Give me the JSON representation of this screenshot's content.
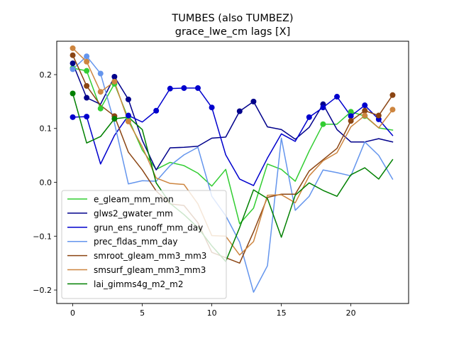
{
  "chart_data": {
    "type": "line",
    "title": "TUMBES (also TUMBEZ)",
    "subtitle": "grace_lwe_cm lags [X]",
    "xlabel": "",
    "ylabel": "",
    "xlim": [
      -1.15,
      24.15
    ],
    "ylim": [
      -0.225,
      0.262
    ],
    "xticks": [
      0,
      5,
      10,
      15,
      20
    ],
    "xtick_labels": [
      "0",
      "5",
      "10",
      "15",
      "20"
    ],
    "yticks": [
      -0.2,
      -0.1,
      0.0,
      0.1,
      0.2
    ],
    "ytick_labels": [
      "−0.2",
      "−0.1",
      "0.0",
      "0.1",
      "0.2"
    ],
    "grid": false,
    "legend_position": "lower-left",
    "x": [
      0,
      1,
      2,
      3,
      4,
      5,
      6,
      7,
      8,
      9,
      10,
      11,
      12,
      13,
      14,
      15,
      16,
      17,
      18,
      19,
      20,
      21,
      22,
      23
    ],
    "series": [
      {
        "name": "e_gleam_mm_mon",
        "color": "#32cd32",
        "values": [
          0.212,
          0.207,
          0.137,
          0.183,
          0.118,
          0.06,
          0.024,
          0.037,
          0.031,
          0.017,
          -0.007,
          0.024,
          -0.077,
          -0.048,
          0.034,
          0.024,
          0.002,
          0.058,
          0.108,
          0.108,
          0.131,
          0.123,
          0.101,
          0.097
        ],
        "markers": [
          0,
          1,
          2,
          3,
          4,
          18,
          20,
          21
        ]
      },
      {
        "name": "glws2_gwater_mm",
        "color": "#00008b",
        "values": [
          0.221,
          0.157,
          0.145,
          0.196,
          0.154,
          0.078,
          0.023,
          0.064,
          0.065,
          0.067,
          0.082,
          0.084,
          0.132,
          0.15,
          0.103,
          0.098,
          0.08,
          0.102,
          0.145,
          0.098,
          0.075,
          0.075,
          0.081,
          0.075
        ],
        "markers": [
          0,
          1,
          3,
          4,
          12,
          13,
          18
        ]
      },
      {
        "name": "grun_ens_runoff_mm_day",
        "color": "#0000cd",
        "values": [
          0.121,
          0.122,
          0.034,
          0.087,
          0.124,
          0.112,
          0.133,
          0.174,
          0.175,
          0.175,
          0.139,
          0.051,
          0.006,
          -0.006,
          0.045,
          0.09,
          0.076,
          0.121,
          0.139,
          0.159,
          0.123,
          0.143,
          0.117,
          0.087
        ],
        "markers": [
          0,
          1,
          4,
          6,
          7,
          8,
          9,
          10,
          17,
          18,
          19,
          20,
          21,
          22
        ]
      },
      {
        "name": "prec_fldas_mm_day",
        "color": "#6495ed",
        "values": [
          0.21,
          0.234,
          0.202,
          0.11,
          -0.003,
          0.003,
          0.002,
          0.031,
          0.051,
          0.065,
          -0.026,
          -0.062,
          -0.111,
          -0.204,
          -0.155,
          0.082,
          -0.052,
          -0.026,
          0.023,
          0.018,
          0.012,
          0.075,
          0.05,
          0.006
        ],
        "markers": [
          0,
          1,
          2
        ]
      },
      {
        "name": "smroot_gleam_mm3_mm3",
        "color": "#8b4513",
        "values": [
          0.236,
          0.179,
          0.143,
          0.123,
          0.056,
          0.023,
          -0.016,
          -0.04,
          -0.043,
          -0.075,
          -0.13,
          -0.14,
          -0.15,
          -0.092,
          -0.028,
          -0.022,
          -0.022,
          0.021,
          0.042,
          0.063,
          0.114,
          0.133,
          0.124,
          0.162
        ],
        "markers": [
          0,
          1,
          3,
          20,
          21,
          22,
          23
        ]
      },
      {
        "name": "smsurf_gleam_mm3_mm3",
        "color": "#cd853f",
        "values": [
          0.249,
          0.224,
          0.168,
          0.187,
          0.113,
          0.066,
          0.008,
          -0.002,
          -0.004,
          -0.04,
          -0.099,
          -0.1,
          -0.135,
          -0.11,
          -0.024,
          -0.023,
          -0.038,
          0.012,
          0.04,
          0.055,
          0.103,
          0.124,
          0.101,
          0.135
        ],
        "markers": [
          0,
          1,
          2,
          3,
          4,
          21,
          23
        ]
      },
      {
        "name": "lai_gimms4g_m2_m2",
        "color": "#008000",
        "values": [
          0.165,
          0.073,
          0.085,
          0.118,
          0.121,
          0.098,
          -0.001,
          -0.039,
          -0.06,
          -0.084,
          -0.118,
          -0.147,
          -0.084,
          -0.014,
          -0.03,
          -0.102,
          -0.024,
          -0.001,
          -0.015,
          -0.026,
          0.014,
          0.027,
          0.006,
          0.042
        ],
        "markers": [
          0,
          3
        ]
      }
    ]
  }
}
